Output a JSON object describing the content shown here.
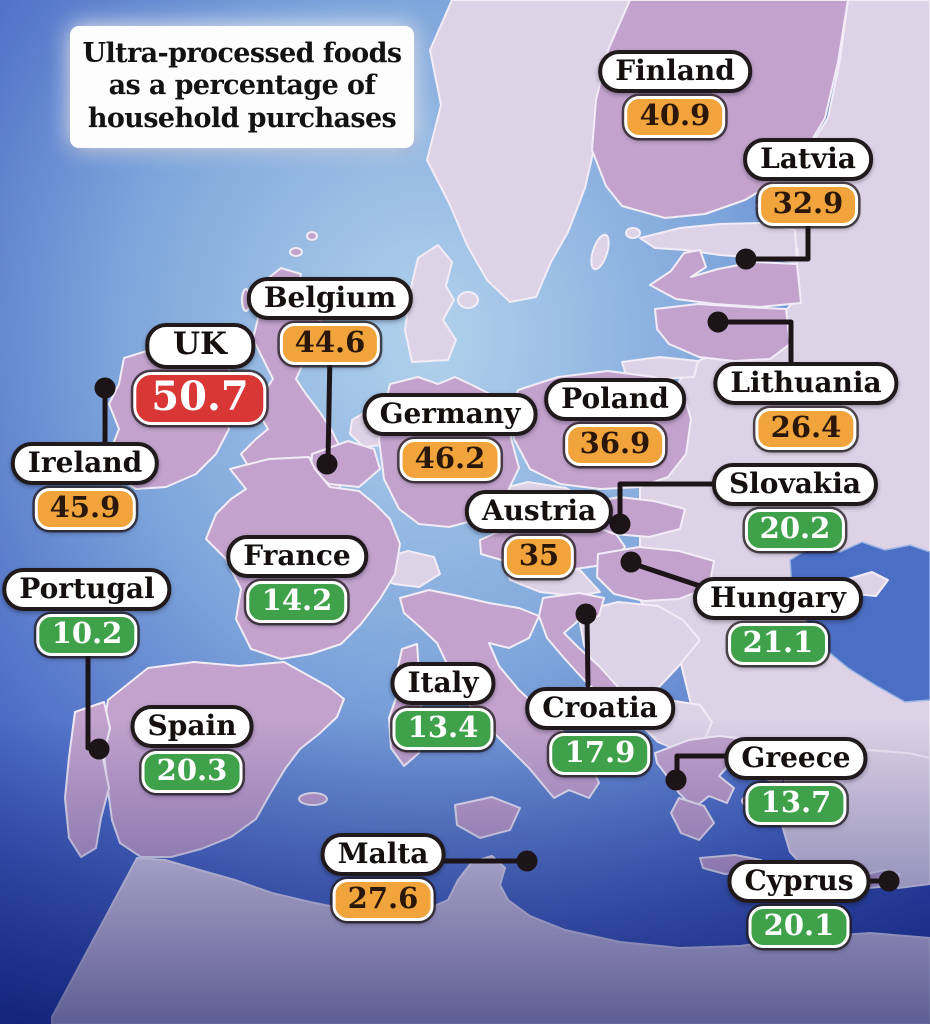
{
  "title": {
    "lines": [
      "Ultra-processed foods",
      "as a percentage of",
      "household purchases"
    ]
  },
  "colors": {
    "red_high": "#d93636",
    "orange_medium": "#f1a43c",
    "green_low": "#3fa24b",
    "label_background": "#ffffff",
    "label_text": "#15100f",
    "leader_line": "#1d1418",
    "sea_light": "#aed0ea",
    "sea_dark": "#1c3a9e",
    "country_featured": "#c3a3cd",
    "country_other": "#ded3e6",
    "country_border": "#f2ecf7"
  },
  "countries": [
    {
      "id": "finland",
      "name": "Finland",
      "value": "40.9",
      "level": "orange"
    },
    {
      "id": "latvia",
      "name": "Latvia",
      "value": "32.9",
      "level": "orange"
    },
    {
      "id": "lithuania",
      "name": "Lithuania",
      "value": "26.4",
      "level": "orange"
    },
    {
      "id": "uk",
      "name": "UK",
      "value": "50.7",
      "level": "red"
    },
    {
      "id": "belgium",
      "name": "Belgium",
      "value": "44.6",
      "level": "orange"
    },
    {
      "id": "germany",
      "name": "Germany",
      "value": "46.2",
      "level": "orange"
    },
    {
      "id": "poland",
      "name": "Poland",
      "value": "36.9",
      "level": "orange"
    },
    {
      "id": "ireland",
      "name": "Ireland",
      "value": "45.9",
      "level": "orange"
    },
    {
      "id": "slovakia",
      "name": "Slovakia",
      "value": "20.2",
      "level": "green"
    },
    {
      "id": "austria",
      "name": "Austria",
      "value": "35",
      "level": "orange"
    },
    {
      "id": "hungary",
      "name": "Hungary",
      "value": "21.1",
      "level": "green"
    },
    {
      "id": "france",
      "name": "France",
      "value": "14.2",
      "level": "green"
    },
    {
      "id": "portugal",
      "name": "Portugal",
      "value": "10.2",
      "level": "green"
    },
    {
      "id": "spain",
      "name": "Spain",
      "value": "20.3",
      "level": "green"
    },
    {
      "id": "italy",
      "name": "Italy",
      "value": "13.4",
      "level": "green"
    },
    {
      "id": "croatia",
      "name": "Croatia",
      "value": "17.9",
      "level": "green"
    },
    {
      "id": "greece",
      "name": "Greece",
      "value": "13.7",
      "level": "green"
    },
    {
      "id": "malta",
      "name": "Malta",
      "value": "27.6",
      "level": "orange"
    },
    {
      "id": "cyprus",
      "name": "Cyprus",
      "value": "20.1",
      "level": "green"
    }
  ]
}
